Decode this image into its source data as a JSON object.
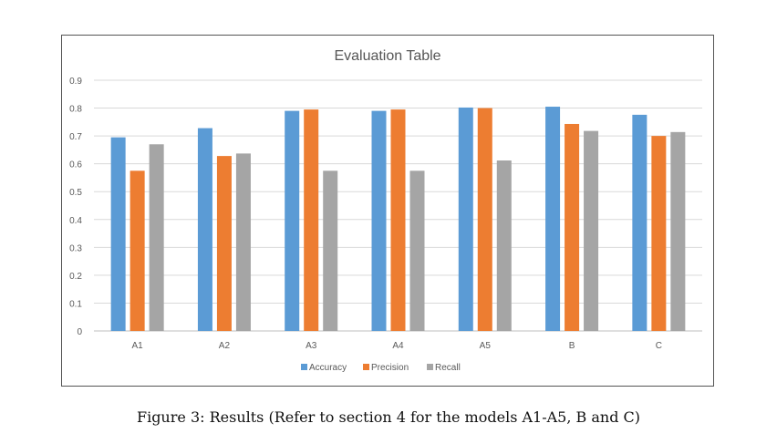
{
  "chart_data": {
    "type": "bar",
    "title": "Evaluation Table",
    "categories": [
      "A1",
      "A2",
      "A3",
      "A4",
      "A5",
      "B",
      "C"
    ],
    "series": [
      {
        "name": "Accuracy",
        "color": "#5B9BD5",
        "values": [
          0.695,
          0.728,
          0.79,
          0.79,
          0.802,
          0.805,
          0.776
        ]
      },
      {
        "name": "Precision",
        "color": "#ED7D31",
        "values": [
          0.575,
          0.628,
          0.795,
          0.795,
          0.8,
          0.743,
          0.7
        ]
      },
      {
        "name": "Recall",
        "color": "#A5A5A5",
        "values": [
          0.67,
          0.637,
          0.575,
          0.575,
          0.612,
          0.718,
          0.714
        ]
      }
    ],
    "ylim": [
      0,
      0.9
    ],
    "yticks": [
      "0",
      "0.1",
      "0.2",
      "0.3",
      "0.4",
      "0.5",
      "0.6",
      "0.7",
      "0.8",
      "0.9"
    ],
    "grid": true,
    "legend_position": "bottom"
  },
  "caption": "Figure 3: Results (Refer to section 4 for the models A1-A5, B and C)"
}
